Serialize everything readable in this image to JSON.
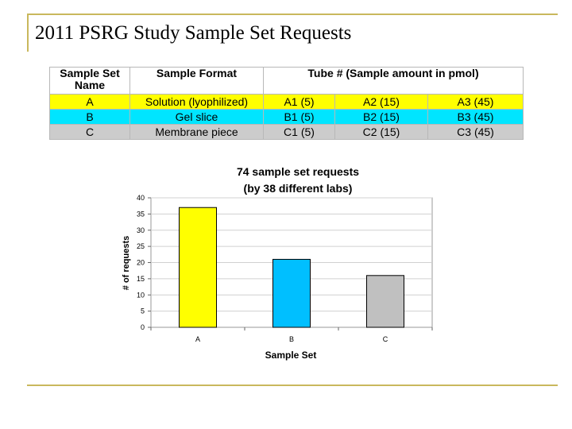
{
  "slide": {
    "title": "2011 PSRG Study Sample Set Requests"
  },
  "table": {
    "headers": [
      "Sample Set Name",
      "Sample Format",
      "Tube # (Sample amount in pmol)"
    ],
    "rows": [
      {
        "name": "A",
        "format": "Solution (lyophilized)",
        "tubes": [
          "A1 (5)",
          "A2 (15)",
          "A3 (45)"
        ],
        "color": "#ffff00"
      },
      {
        "name": "B",
        "format": "Gel slice",
        "tubes": [
          "B1 (5)",
          "B2 (15)",
          "B3 (45)"
        ],
        "color": "#00e5ff"
      },
      {
        "name": "C",
        "format": "Membrane piece",
        "tubes": [
          "C1 (5)",
          "C2 (15)",
          "C3 (45)"
        ],
        "color": "#cccccc"
      }
    ]
  },
  "chart_data": {
    "type": "bar",
    "title": [
      "74 sample set requests",
      "(by 38 different labs)"
    ],
    "xlabel": "Sample Set",
    "ylabel": "# of requests",
    "categories": [
      "A",
      "B",
      "C"
    ],
    "values": [
      37,
      21,
      16
    ],
    "colors": [
      "#ffff00",
      "#00bfff",
      "#c0c0c0"
    ],
    "ylim": [
      0,
      40
    ],
    "yticks": [
      0,
      5,
      10,
      15,
      20,
      25,
      30,
      35,
      40
    ],
    "grid": true,
    "legend": "none"
  }
}
